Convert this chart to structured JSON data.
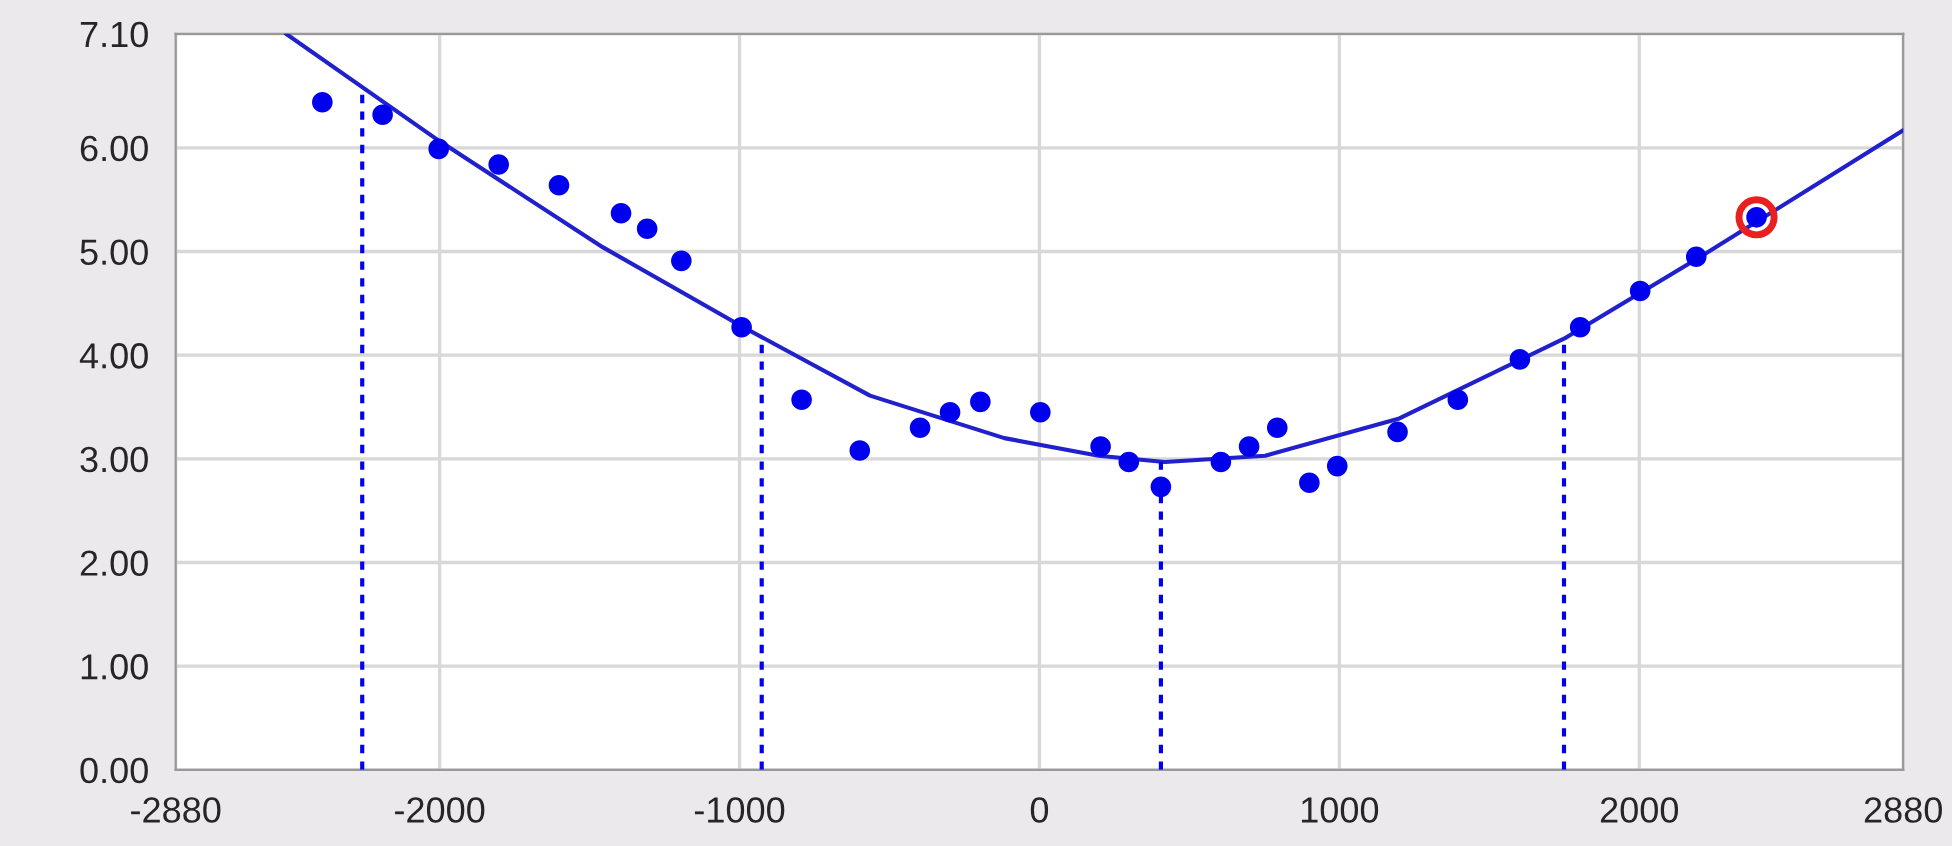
{
  "chart_data": {
    "type": "scatter",
    "xlim": [
      -2880,
      2880
    ],
    "xticks": [
      -2880,
      -2000,
      -1000,
      0,
      1000,
      2000,
      2880
    ],
    "ylim": [
      0,
      7.1
    ],
    "yticks": [
      {
        "value": 0,
        "label": "0.00"
      },
      {
        "value": 1,
        "label": "1.00"
      },
      {
        "value": 2,
        "label": "2.00"
      },
      {
        "value": 3,
        "label": "3.00"
      },
      {
        "value": 4,
        "label": "4.00"
      },
      {
        "value": 5,
        "label": "5.00"
      },
      {
        "value": 6,
        "label": "6.00"
      },
      {
        "value": 7.1,
        "label": "7.10"
      }
    ],
    "grid": true,
    "series": [
      {
        "color": "#0000ee",
        "marker": "circle",
        "x": [
          -2391,
          -2190,
          -2003,
          -1803,
          -1602,
          -1395,
          -1308,
          -1194,
          -993,
          -793,
          -599,
          -398,
          -298,
          -197,
          3,
          204,
          298,
          405,
          605,
          699,
          793,
          900,
          993,
          1194,
          1395,
          1602,
          1803,
          2003,
          2190,
          2391
        ],
        "values": [
          6.44,
          6.32,
          5.99,
          5.84,
          5.64,
          5.37,
          5.22,
          4.91,
          4.27,
          3.57,
          3.08,
          3.3,
          3.45,
          3.55,
          3.45,
          3.12,
          2.97,
          2.73,
          2.97,
          3.12,
          3.3,
          2.77,
          2.93,
          3.26,
          3.57,
          3.96,
          4.27,
          4.62,
          4.95,
          5.33
        ]
      },
      {
        "type": "line",
        "color": "#2020cc",
        "line_style": "solid",
        "marker": "none",
        "x": [
          -2512,
          -2003,
          -1455,
          -987,
          -565,
          -117,
          197,
          418,
          753,
          1200,
          1756,
          2204,
          2880
        ],
        "values": [
          7.1,
          6.07,
          5.04,
          4.27,
          3.61,
          3.2,
          3.03,
          2.97,
          3.03,
          3.39,
          4.17,
          4.95,
          6.17
        ]
      },
      {
        "type": "line",
        "color": "#0000ee",
        "line_style": "dotted",
        "marker": "none",
        "x": [
          -2258,
          -2258
        ],
        "values": [
          0,
          6.52
        ]
      },
      {
        "type": "line",
        "color": "#0000ee",
        "line_style": "dotted",
        "marker": "none",
        "x": [
          -926,
          -926
        ],
        "values": [
          0,
          4.17
        ]
      },
      {
        "type": "line",
        "color": "#0000ee",
        "line_style": "dotted",
        "marker": "none",
        "x": [
          405,
          405
        ],
        "values": [
          0,
          2.97
        ]
      },
      {
        "type": "line",
        "color": "#0000ee",
        "line_style": "dotted",
        "marker": "none",
        "x": [
          1749,
          1749
        ],
        "values": [
          0,
          4.17
        ]
      },
      {
        "color": "#e82020",
        "marker": "circle",
        "x": [
          2391
        ],
        "values": [
          5.33
        ]
      }
    ]
  }
}
